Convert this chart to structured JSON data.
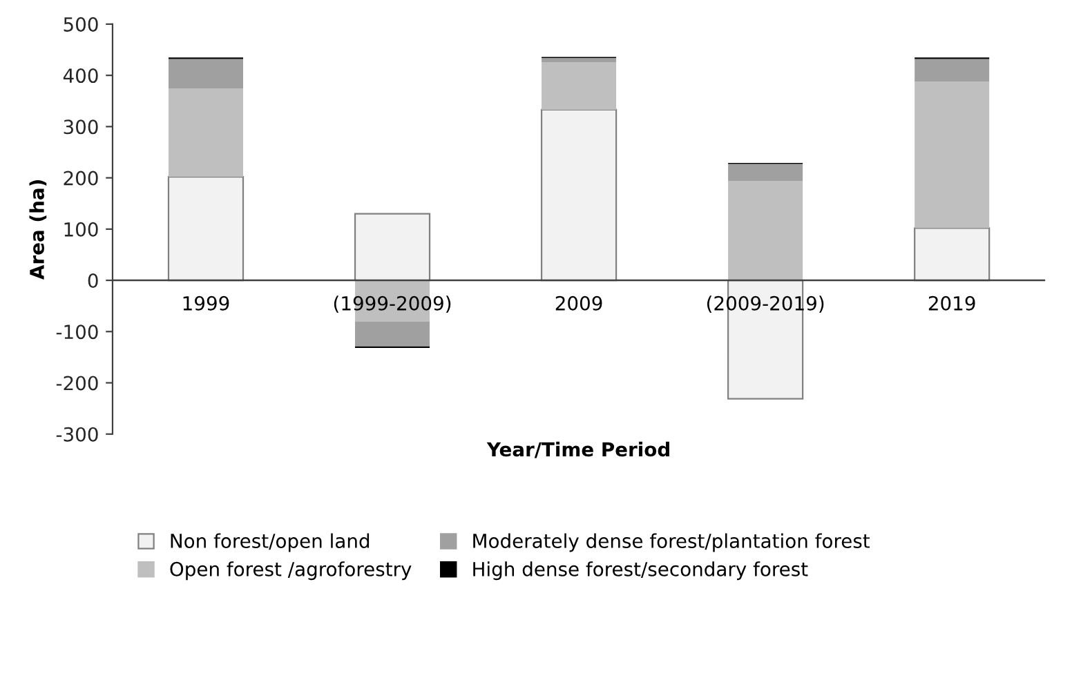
{
  "chart_data": {
    "type": "bar",
    "stacked": true,
    "xlabel": "Year/Time Period",
    "ylabel": "Area (ha)",
    "categories": [
      "1999",
      "(1999-2009)",
      "2009",
      "(2009-2019)",
      "2019"
    ],
    "series": [
      {
        "name": "Non forest/open land",
        "color": "#f2f2f2",
        "values": [
          202,
          130,
          333,
          -231,
          102
        ]
      },
      {
        "name": "Open forest /agroforestry",
        "color": "#bfbfbf",
        "values": [
          172,
          -80,
          92,
          194,
          286
        ]
      },
      {
        "name": "Moderately dense forest/plantation forest",
        "color": "#a0a0a0",
        "values": [
          58,
          -49,
          9,
          33,
          44
        ]
      },
      {
        "name": "High dense forest/secondary forest",
        "color": "#000000",
        "values": [
          3,
          -3,
          2,
          2,
          3
        ]
      }
    ],
    "ylim": [
      -300,
      500
    ],
    "yticks": [
      -300,
      -200,
      -100,
      0,
      100,
      200,
      300,
      400,
      500
    ],
    "grid": false,
    "legend": "bottom"
  }
}
